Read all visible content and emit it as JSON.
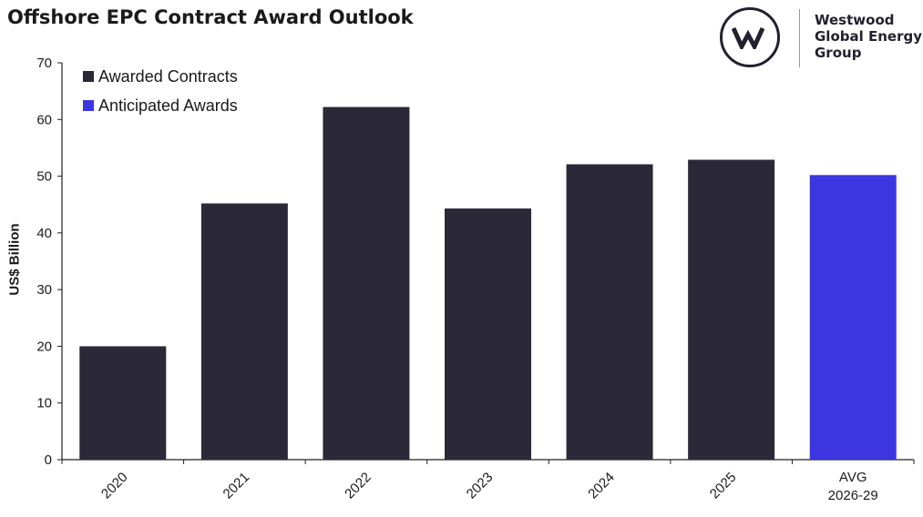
{
  "title": "Offshore EPC Contract Award Outlook",
  "logo": {
    "line1": "Westwood",
    "line2": "Global Energy",
    "line3": "Group"
  },
  "colors": {
    "awarded": "#2b2838",
    "anticipated": "#3b36e0",
    "axis": "#222222",
    "logo": "#23212f"
  },
  "chart_data": {
    "type": "bar",
    "categories": [
      "2020",
      "2021",
      "2022",
      "2023",
      "2024",
      "2025",
      "AVG 2026-29"
    ],
    "series": [
      {
        "name": "Awarded Contracts",
        "values": [
          20,
          45.2,
          62.2,
          44.3,
          52.1,
          52.9,
          null
        ]
      },
      {
        "name": "Anticipated Awards",
        "values": [
          null,
          null,
          null,
          null,
          null,
          null,
          50.2
        ]
      }
    ],
    "ylabel": "US$ Billion",
    "xlabel": "",
    "ylim": [
      0,
      70
    ],
    "yticks": [
      0,
      10,
      20,
      30,
      40,
      50,
      60,
      70
    ],
    "grid": false,
    "legend": "top-left"
  }
}
